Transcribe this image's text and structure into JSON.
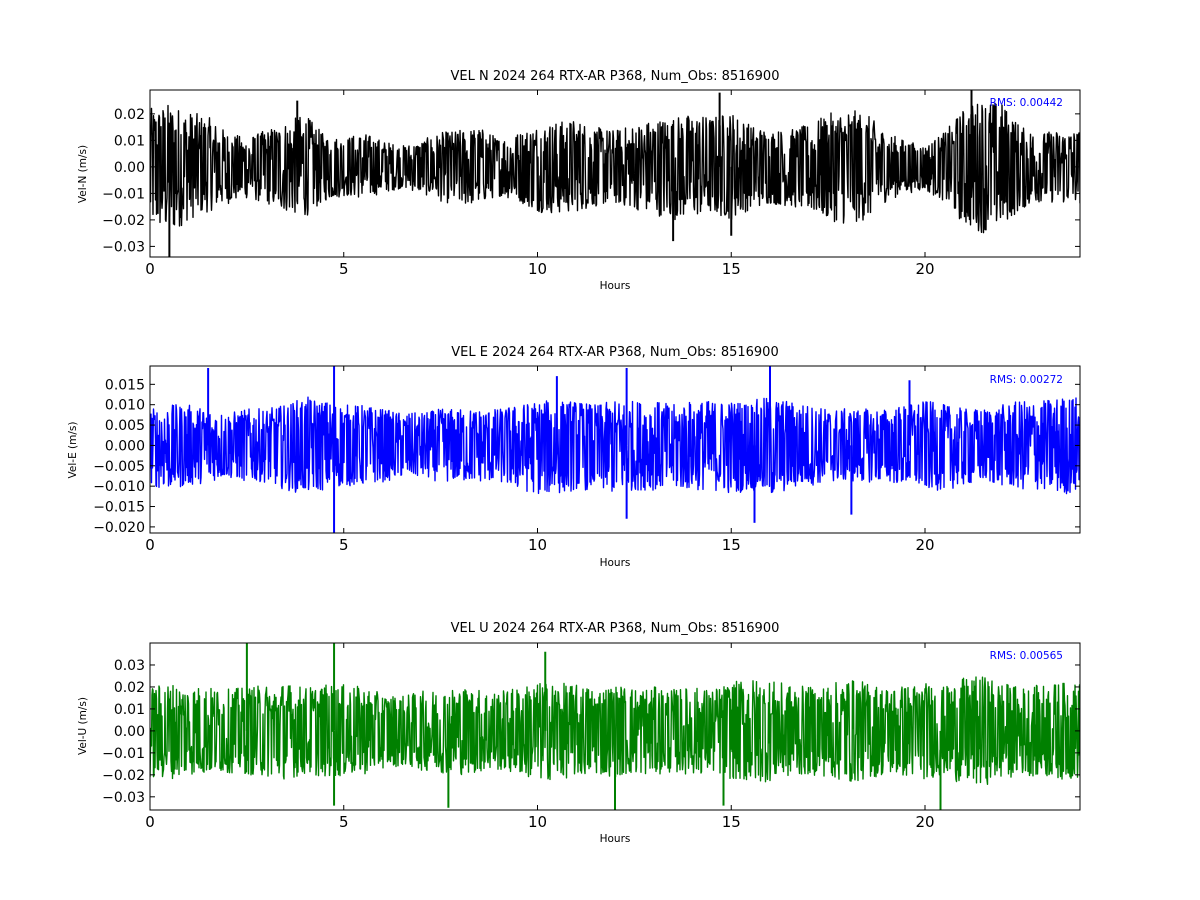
{
  "chart_data": [
    {
      "type": "line",
      "title": "VEL N 2024 264 RTX-AR  P368, Num_Obs: 8516900",
      "xlabel": "Hours",
      "ylabel": "Vel-N (m/s)",
      "xlim": [
        0,
        24
      ],
      "ylim": [
        -0.034,
        0.029
      ],
      "xticks": [
        0,
        5,
        10,
        15,
        20
      ],
      "xtick_labels": [
        "0",
        "5",
        "10",
        "15",
        "20"
      ],
      "yticks": [
        -0.03,
        -0.02,
        -0.01,
        0.0,
        0.01,
        0.02
      ],
      "ytick_labels": [
        "−0.03",
        "−0.02",
        "−0.01",
        "0.00",
        "0.01",
        "0.02"
      ],
      "annotation": "RMS:  0.00442",
      "annotation_color": "#0000ff",
      "color": "#000000",
      "grid": false,
      "envelope": {
        "x": [
          0,
          0.5,
          1,
          1.5,
          2,
          2.5,
          3,
          3.5,
          4,
          4.5,
          5,
          5.5,
          6,
          6.5,
          7,
          7.5,
          8,
          8.5,
          9,
          9.5,
          10,
          10.5,
          11,
          11.5,
          12,
          12.5,
          13,
          13.5,
          14,
          14.5,
          15,
          15.5,
          16,
          16.5,
          17,
          17.5,
          18,
          18.5,
          19,
          19.5,
          20,
          20.5,
          21,
          21.5,
          22,
          22.5,
          23,
          23.5,
          24
        ],
        "max": [
          0.022,
          0.024,
          0.021,
          0.019,
          0.013,
          0.011,
          0.014,
          0.017,
          0.02,
          0.012,
          0.011,
          0.013,
          0.01,
          0.008,
          0.01,
          0.013,
          0.014,
          0.015,
          0.011,
          0.013,
          0.016,
          0.017,
          0.018,
          0.015,
          0.014,
          0.016,
          0.018,
          0.019,
          0.02,
          0.019,
          0.021,
          0.016,
          0.014,
          0.014,
          0.016,
          0.02,
          0.022,
          0.02,
          0.013,
          0.01,
          0.008,
          0.013,
          0.022,
          0.026,
          0.024,
          0.015,
          0.013,
          0.014,
          0.014
        ],
        "min": [
          -0.022,
          -0.026,
          -0.02,
          -0.017,
          -0.014,
          -0.012,
          -0.014,
          -0.017,
          -0.019,
          -0.013,
          -0.011,
          -0.012,
          -0.01,
          -0.008,
          -0.01,
          -0.013,
          -0.015,
          -0.014,
          -0.011,
          -0.013,
          -0.017,
          -0.018,
          -0.017,
          -0.015,
          -0.014,
          -0.016,
          -0.018,
          -0.02,
          -0.019,
          -0.018,
          -0.02,
          -0.016,
          -0.014,
          -0.015,
          -0.017,
          -0.02,
          -0.022,
          -0.02,
          -0.013,
          -0.01,
          -0.009,
          -0.013,
          -0.022,
          -0.025,
          -0.022,
          -0.016,
          -0.013,
          -0.014,
          -0.014
        ]
      },
      "spikes": [
        {
          "x": 0.5,
          "y": -0.034
        },
        {
          "x": 13.5,
          "y": -0.028
        },
        {
          "x": 15.0,
          "y": -0.026
        },
        {
          "x": 14.7,
          "y": 0.028
        },
        {
          "x": 21.2,
          "y": 0.029
        },
        {
          "x": 3.8,
          "y": 0.025
        }
      ]
    },
    {
      "type": "line",
      "title": "VEL E 2024 264 RTX-AR  P368, Num_Obs: 8516900",
      "xlabel": "Hours",
      "ylabel": "Vel-E (m/s)",
      "xlim": [
        0,
        24
      ],
      "ylim": [
        -0.0215,
        0.0195
      ],
      "xticks": [
        0,
        5,
        10,
        15,
        20
      ],
      "xtick_labels": [
        "0",
        "5",
        "10",
        "15",
        "20"
      ],
      "yticks": [
        -0.02,
        -0.015,
        -0.01,
        -0.005,
        0.0,
        0.005,
        0.01,
        0.015
      ],
      "ytick_labels": [
        "−0.020",
        "−0.015",
        "−0.010",
        "−0.005",
        "0.000",
        "0.005",
        "0.010",
        "0.015"
      ],
      "annotation": "RMS:  0.00272",
      "annotation_color": "#0000ff",
      "color": "#0000ff",
      "grid": false,
      "envelope": {
        "x": [
          0,
          0.5,
          1,
          1.5,
          2,
          2.5,
          3,
          3.5,
          4,
          4.5,
          5,
          5.5,
          6,
          6.5,
          7,
          7.5,
          8,
          8.5,
          9,
          9.5,
          10,
          10.5,
          11,
          11.5,
          12,
          12.5,
          13,
          13.5,
          14,
          14.5,
          15,
          15.5,
          16,
          16.5,
          17,
          17.5,
          18,
          18.5,
          19,
          19.5,
          20,
          20.5,
          21,
          21.5,
          22,
          22.5,
          23,
          23.5,
          24
        ],
        "max": [
          0.009,
          0.01,
          0.01,
          0.009,
          0.008,
          0.009,
          0.009,
          0.01,
          0.012,
          0.011,
          0.01,
          0.01,
          0.009,
          0.008,
          0.008,
          0.009,
          0.009,
          0.009,
          0.009,
          0.01,
          0.011,
          0.011,
          0.011,
          0.01,
          0.011,
          0.011,
          0.011,
          0.01,
          0.011,
          0.011,
          0.011,
          0.011,
          0.012,
          0.011,
          0.01,
          0.009,
          0.009,
          0.009,
          0.009,
          0.01,
          0.011,
          0.01,
          0.009,
          0.009,
          0.01,
          0.011,
          0.011,
          0.012,
          0.012
        ],
        "min": [
          -0.01,
          -0.011,
          -0.01,
          -0.009,
          -0.008,
          -0.009,
          -0.009,
          -0.011,
          -0.012,
          -0.011,
          -0.01,
          -0.01,
          -0.009,
          -0.008,
          -0.008,
          -0.009,
          -0.009,
          -0.009,
          -0.009,
          -0.011,
          -0.012,
          -0.012,
          -0.011,
          -0.011,
          -0.012,
          -0.011,
          -0.011,
          -0.011,
          -0.011,
          -0.011,
          -0.012,
          -0.011,
          -0.013,
          -0.011,
          -0.01,
          -0.009,
          -0.009,
          -0.009,
          -0.009,
          -0.01,
          -0.011,
          -0.011,
          -0.01,
          -0.009,
          -0.01,
          -0.011,
          -0.011,
          -0.012,
          -0.012
        ]
      },
      "spikes": [
        {
          "x": 1.5,
          "y": 0.019
        },
        {
          "x": 4.75,
          "y": 0.0195
        },
        {
          "x": 4.75,
          "y": -0.0215
        },
        {
          "x": 10.5,
          "y": 0.017
        },
        {
          "x": 12.3,
          "y": 0.019
        },
        {
          "x": 12.3,
          "y": -0.018
        },
        {
          "x": 15.6,
          "y": -0.019
        },
        {
          "x": 16.0,
          "y": 0.0195
        },
        {
          "x": 18.1,
          "y": -0.017
        },
        {
          "x": 19.6,
          "y": 0.016
        }
      ]
    },
    {
      "type": "line",
      "title": "VEL U 2024 264 RTX-AR  P368, Num_Obs: 8516900",
      "xlabel": "Hours",
      "ylabel": "Vel-U (m/s)",
      "xlim": [
        0,
        24
      ],
      "ylim": [
        -0.036,
        0.04
      ],
      "xticks": [
        0,
        5,
        10,
        15,
        20
      ],
      "xtick_labels": [
        "0",
        "5",
        "10",
        "15",
        "20"
      ],
      "yticks": [
        -0.03,
        -0.02,
        -0.01,
        0.0,
        0.01,
        0.02,
        0.03
      ],
      "ytick_labels": [
        "−0.03",
        "−0.02",
        "−0.01",
        "0.00",
        "0.01",
        "0.02",
        "0.03"
      ],
      "annotation": "RMS:  0.00565",
      "annotation_color": "#0000ff",
      "color": "#008000",
      "grid": false,
      "envelope": {
        "x": [
          0,
          0.5,
          1,
          1.5,
          2,
          2.5,
          3,
          3.5,
          4,
          4.5,
          5,
          5.5,
          6,
          6.5,
          7,
          7.5,
          8,
          8.5,
          9,
          9.5,
          10,
          10.5,
          11,
          11.5,
          12,
          12.5,
          13,
          13.5,
          14,
          14.5,
          15,
          15.5,
          16,
          16.5,
          17,
          17.5,
          18,
          18.5,
          19,
          19.5,
          20,
          20.5,
          21,
          21.5,
          22,
          22.5,
          23,
          23.5,
          24
        ],
        "max": [
          0.02,
          0.022,
          0.021,
          0.02,
          0.019,
          0.02,
          0.021,
          0.022,
          0.02,
          0.021,
          0.021,
          0.02,
          0.017,
          0.016,
          0.018,
          0.019,
          0.02,
          0.019,
          0.018,
          0.02,
          0.022,
          0.022,
          0.021,
          0.02,
          0.021,
          0.02,
          0.02,
          0.019,
          0.02,
          0.019,
          0.022,
          0.024,
          0.023,
          0.021,
          0.02,
          0.021,
          0.024,
          0.022,
          0.02,
          0.021,
          0.022,
          0.02,
          0.024,
          0.025,
          0.022,
          0.02,
          0.021,
          0.022,
          0.022
        ],
        "min": [
          -0.022,
          -0.022,
          -0.02,
          -0.02,
          -0.019,
          -0.02,
          -0.021,
          -0.022,
          -0.02,
          -0.021,
          -0.021,
          -0.02,
          -0.017,
          -0.016,
          -0.018,
          -0.019,
          -0.02,
          -0.019,
          -0.018,
          -0.02,
          -0.023,
          -0.022,
          -0.021,
          -0.02,
          -0.021,
          -0.02,
          -0.02,
          -0.019,
          -0.02,
          -0.019,
          -0.022,
          -0.024,
          -0.023,
          -0.021,
          -0.02,
          -0.021,
          -0.024,
          -0.022,
          -0.02,
          -0.021,
          -0.022,
          -0.02,
          -0.025,
          -0.025,
          -0.022,
          -0.02,
          -0.021,
          -0.022,
          -0.022
        ]
      },
      "spikes": [
        {
          "x": 2.5,
          "y": 0.04
        },
        {
          "x": 4.75,
          "y": 0.04
        },
        {
          "x": 4.75,
          "y": -0.034
        },
        {
          "x": 7.7,
          "y": -0.035
        },
        {
          "x": 10.2,
          "y": 0.036
        },
        {
          "x": 12.0,
          "y": -0.036
        },
        {
          "x": 14.8,
          "y": -0.034
        },
        {
          "x": 20.4,
          "y": -0.036
        }
      ]
    }
  ]
}
